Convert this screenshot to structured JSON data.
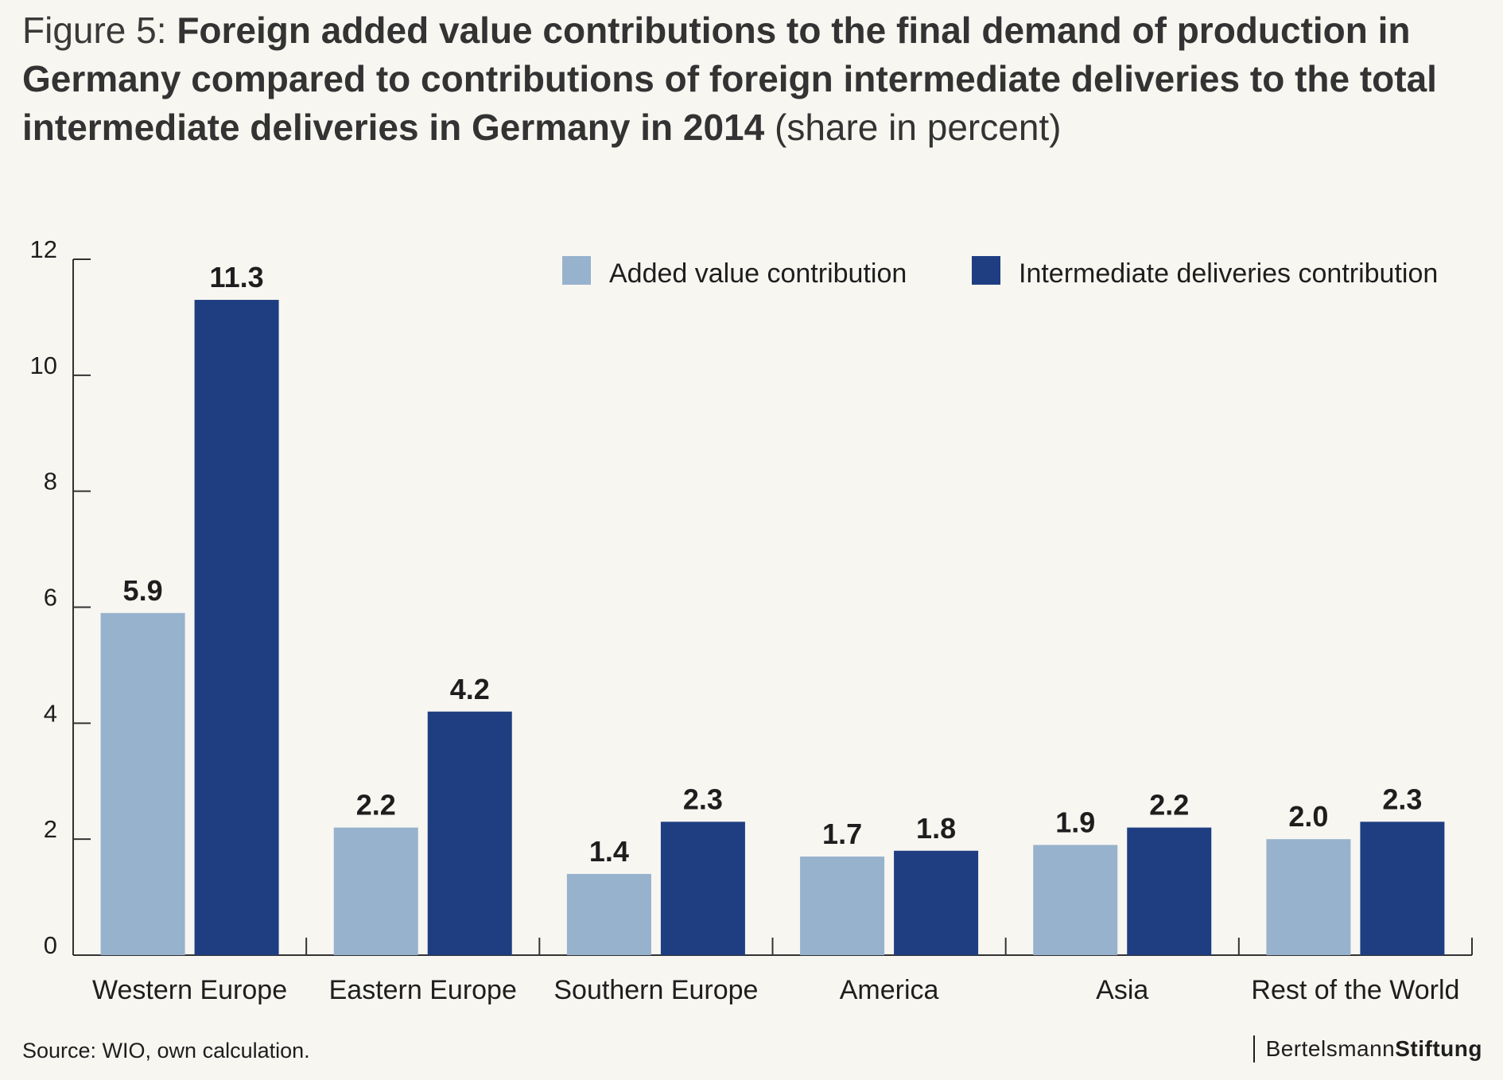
{
  "title": {
    "prefix": "Figure 5: ",
    "main": "Foreign added value contributions to the final demand of production in Germany compared to contributions of foreign intermediate deliveries to the total intermediate deliveries in Germany in 2014",
    "unit": " (share in percent)"
  },
  "source": "Source: WIO, own calculation.",
  "brand": {
    "light": "Bertelsmann",
    "bold": "Stiftung"
  },
  "colors": {
    "background": "#f7f6f1",
    "added_value": "#97b2cc",
    "intermediate": "#1f3e82",
    "axis": "#333333",
    "text": "#1e1e1e"
  },
  "chart_data": {
    "type": "bar",
    "categories": [
      "Western Europe",
      "Eastern Europe",
      "Southern Europe",
      "America",
      "Asia",
      "Rest of the World"
    ],
    "series": [
      {
        "name": "Added value contribution",
        "values": [
          5.9,
          2.2,
          1.4,
          1.7,
          1.9,
          2.0
        ],
        "labels": [
          "5.9",
          "2.2",
          "1.4",
          "1.7",
          "1.9",
          "2.0"
        ]
      },
      {
        "name": "Intermediate deliveries contribution",
        "values": [
          11.3,
          4.2,
          2.3,
          1.8,
          2.2,
          2.3
        ],
        "labels": [
          "11.3",
          "4.2",
          "2.3",
          "1.8",
          "2.2",
          "2.3"
        ]
      }
    ],
    "ylim": [
      0,
      12
    ],
    "yticks": [
      0,
      2,
      4,
      6,
      8,
      10,
      12
    ],
    "ytick_labels": [
      "0",
      "2",
      "4",
      "6",
      "8",
      "10",
      "12"
    ],
    "xlabel": "",
    "ylabel": "",
    "grid": false,
    "legend_position": "top-right"
  }
}
